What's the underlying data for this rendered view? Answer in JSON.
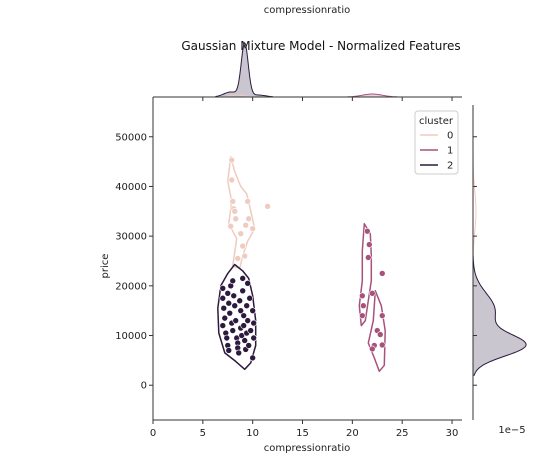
{
  "chart_data": {
    "type": "scatter",
    "title": "Gaussian Mixture Model - Normalized Features",
    "top_label": "compressionratio",
    "xlabel": "compressionratio",
    "ylabel": "price",
    "xlim": [
      0,
      31
    ],
    "ylim": [
      -7000,
      58000
    ],
    "xticks": [
      0,
      5,
      10,
      15,
      20,
      25,
      30
    ],
    "yticks": [
      0,
      10000,
      20000,
      30000,
      40000,
      50000
    ],
    "right_offset_text": "1e−5",
    "grid": false,
    "legend": {
      "title": "cluster",
      "placement": "top-right",
      "entries": [
        "0",
        "1",
        "2"
      ]
    },
    "colors": {
      "0": "#f0cbbf",
      "1": "#a7527d",
      "2": "#2d1a3e"
    },
    "series": [
      {
        "name": "0",
        "points": [
          [
            7.9,
            45300
          ],
          [
            7.9,
            41300
          ],
          [
            8.0,
            37000
          ],
          [
            8.1,
            35500
          ],
          [
            8.2,
            35000
          ],
          [
            8.3,
            33500
          ],
          [
            7.8,
            32000
          ],
          [
            9.5,
            37000
          ],
          [
            9.6,
            33500
          ],
          [
            9.3,
            32200
          ],
          [
            10.0,
            31500
          ],
          [
            11.5,
            36000
          ],
          [
            8.8,
            30500
          ],
          [
            9.0,
            28000
          ],
          [
            9.2,
            26000
          ],
          [
            8.5,
            25500
          ]
        ]
      },
      {
        "name": "1",
        "points": [
          [
            21.5,
            31000
          ],
          [
            21.7,
            28300
          ],
          [
            21.6,
            25700
          ],
          [
            21.0,
            18000
          ],
          [
            21.1,
            16000
          ],
          [
            21.0,
            14000
          ],
          [
            22.0,
            18500
          ],
          [
            23.0,
            22500
          ],
          [
            22.5,
            11000
          ],
          [
            22.8,
            10200
          ],
          [
            23.0,
            14000
          ],
          [
            22.2,
            8000
          ],
          [
            22.0,
            7300
          ],
          [
            23.0,
            8100
          ]
        ]
      },
      {
        "name": "2",
        "points": [
          [
            7.0,
            19500
          ],
          [
            7.0,
            17500
          ],
          [
            7.1,
            15500
          ],
          [
            7.2,
            13500
          ],
          [
            7.0,
            12000
          ],
          [
            7.3,
            10500
          ],
          [
            7.4,
            9500
          ],
          [
            7.5,
            8000
          ],
          [
            7.6,
            7000
          ],
          [
            7.5,
            18500
          ],
          [
            7.6,
            16500
          ],
          [
            7.7,
            14500
          ],
          [
            7.8,
            20000
          ],
          [
            7.9,
            12500
          ],
          [
            8.0,
            11000
          ],
          [
            8.0,
            21000
          ],
          [
            8.1,
            18000
          ],
          [
            8.2,
            16000
          ],
          [
            8.3,
            13000
          ],
          [
            8.4,
            9500
          ],
          [
            8.5,
            8500
          ],
          [
            8.5,
            7500
          ],
          [
            8.6,
            6500
          ],
          [
            8.7,
            17000
          ],
          [
            8.8,
            15000
          ],
          [
            8.8,
            11500
          ],
          [
            8.9,
            10000
          ],
          [
            9.0,
            21500
          ],
          [
            9.0,
            19000
          ],
          [
            9.1,
            14000
          ],
          [
            9.1,
            12000
          ],
          [
            9.2,
            9000
          ],
          [
            9.3,
            7200
          ],
          [
            9.4,
            16000
          ],
          [
            9.4,
            10500
          ],
          [
            9.5,
            20500
          ],
          [
            9.5,
            13000
          ],
          [
            9.6,
            8000
          ],
          [
            9.7,
            17500
          ],
          [
            9.8,
            11000
          ],
          [
            10.0,
            15000
          ],
          [
            10.1,
            12500
          ],
          [
            10.1,
            9500
          ],
          [
            10.0,
            5500
          ]
        ]
      }
    ],
    "top_marginal": [
      {
        "series": "2",
        "peak_x": 9.2
      },
      {
        "series": "1",
        "peak_x": 22.0
      }
    ],
    "right_marginal": [
      {
        "series": "2",
        "peak_y": 8000
      },
      {
        "series": "0",
        "peak_y": 35000
      }
    ]
  }
}
